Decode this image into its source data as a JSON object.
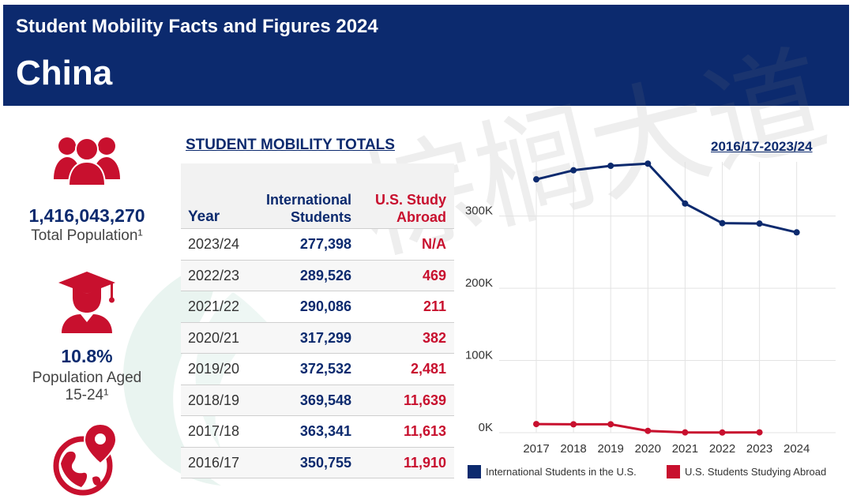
{
  "header": {
    "subtitle": "Student Mobility Facts and Figures 2024",
    "country": "China"
  },
  "watermark": {
    "text": "棕榈大道"
  },
  "stats": {
    "population_value": "1,416,043,270",
    "population_label": "Total Population¹",
    "aged_value": "10.8%",
    "aged_label_line1": "Population Aged",
    "aged_label_line2": "15-24¹"
  },
  "section_title": "STUDENT MOBILITY TOTALS",
  "range_title": "2016/17-2023/24",
  "table": {
    "headers": {
      "year": "Year",
      "intl_line1": "International",
      "intl_line2": "Students",
      "abroad_line1": "U.S. Study",
      "abroad_line2": "Abroad"
    },
    "rows": [
      {
        "year": "2023/24",
        "intl": "277,398",
        "abroad": "N/A"
      },
      {
        "year": "2022/23",
        "intl": "289,526",
        "abroad": "469"
      },
      {
        "year": "2021/22",
        "intl": "290,086",
        "abroad": "211"
      },
      {
        "year": "2020/21",
        "intl": "317,299",
        "abroad": "382"
      },
      {
        "year": "2019/20",
        "intl": "372,532",
        "abroad": "2,481"
      },
      {
        "year": "2018/19",
        "intl": "369,548",
        "abroad": "11,639"
      },
      {
        "year": "2017/18",
        "intl": "363,341",
        "abroad": "11,613"
      },
      {
        "year": "2016/17",
        "intl": "350,755",
        "abroad": "11,910"
      }
    ]
  },
  "colors": {
    "navy": "#0c2a6e",
    "red": "#c8102e",
    "grid": "#e3e3e3"
  },
  "icons": {
    "population": "people-group-icon",
    "aged": "graduate-icon",
    "globe": "globe-pin-icon"
  },
  "chart_data": {
    "type": "line",
    "x": [
      "2017",
      "2018",
      "2019",
      "2020",
      "2021",
      "2022",
      "2023",
      "2024"
    ],
    "y_ticks": [
      "0K",
      "100K",
      "200K",
      "300K"
    ],
    "ylim": [
      0,
      375000
    ],
    "grid": true,
    "legend_position": "bottom",
    "series": [
      {
        "name": "International Students in the U.S.",
        "color": "#0c2a6e",
        "values": [
          350755,
          363341,
          369548,
          372532,
          317299,
          290086,
          289526,
          277398
        ]
      },
      {
        "name": "U.S. Students Studying Abroad",
        "color": "#c8102e",
        "values": [
          11910,
          11613,
          11639,
          2481,
          382,
          211,
          469,
          null
        ]
      }
    ]
  }
}
